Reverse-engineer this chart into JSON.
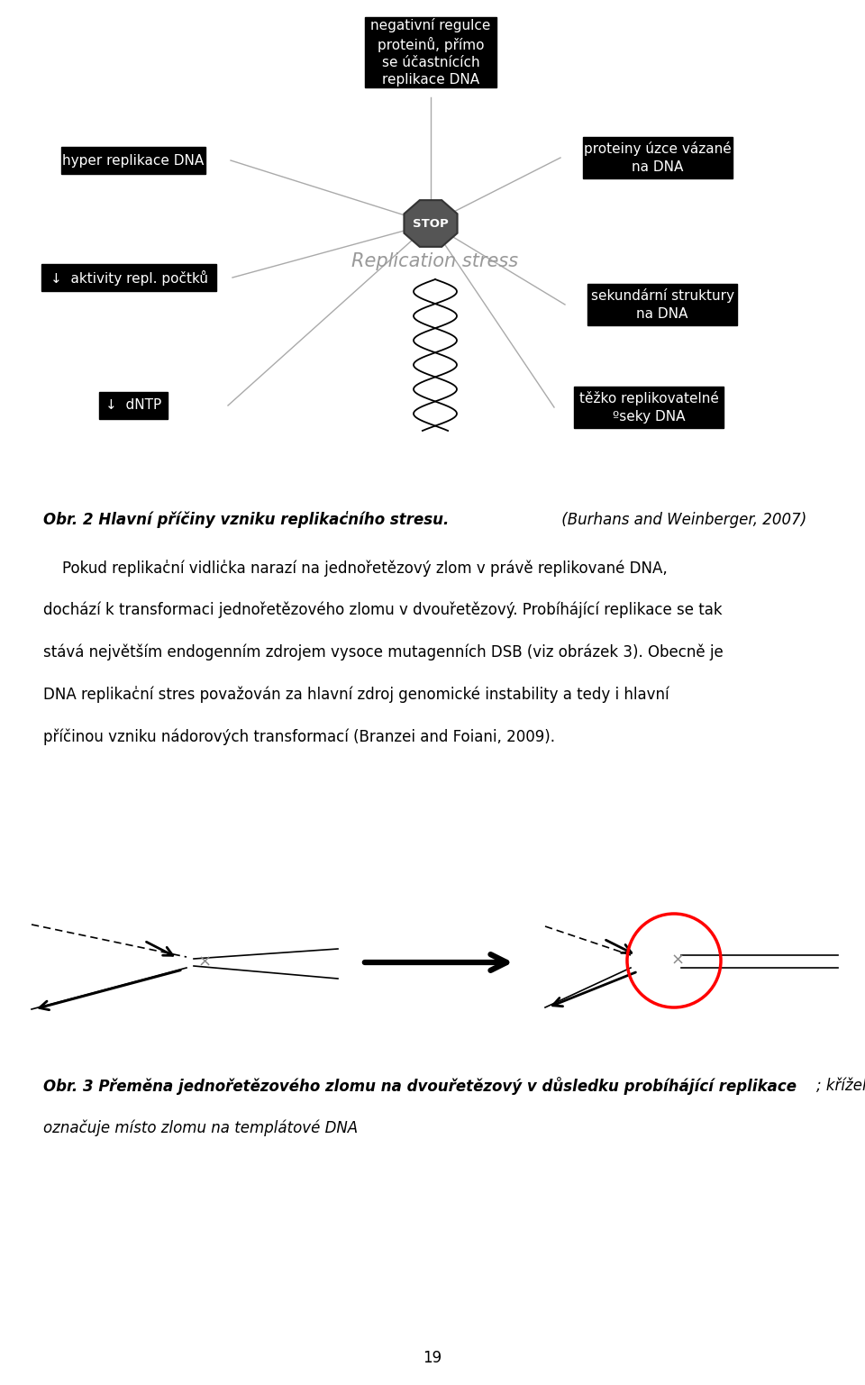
{
  "bg_color": "#ffffff",
  "page_number": "19",
  "stop_label": "STOP",
  "replication_stress_label": "Replication stress",
  "top_box": "negativní regulce\nproteinů, přímo\nse účastnících\nreplikace DNA",
  "lt_box": "hyper replikace DNA",
  "rt_box": "proteiny úzce vázané\nna DNA",
  "lb_box": "↓  aktivity repl. počtků",
  "rb_box": "sekundární struktury\nna DNA",
  "dn_box": "↓  dNTP",
  "tk_box": "těžko replikovatelné\nºseky DNA",
  "caption1_bold": "Obr. 2 Hlavní příčiny vzniku replikac̍ního stresu.",
  "caption1_normal": " (Burhans and Weinberger, 2007)",
  "para_lines": [
    "    Pokud replikac̍ní vidlic̍ka narazí na jednořetězový zlom v právě replikované DNA,",
    "dochází k transformaci jednořetězového zlomu v dvouřetězový. Probíhájící replikace se tak",
    "stává největším endogenním zdrojem vysoce mutagenních DSB (viz obrázek 3). Obecně je",
    "DNA replikac̍ní stres považován za hlavní zdroj genomické instability a tedy i hlavní",
    "příčinou vzniku nádorových transformací (Branzei and Foiani, 2009)."
  ],
  "caption2_bold": "Obr. 3 Přeměna jednořetězového zlomu na dvouřetězový v důsledku probíhájící replikace",
  "caption2_normal": "; křížek",
  "caption2_line2": "označuje místo zlomu na templátové DNA"
}
